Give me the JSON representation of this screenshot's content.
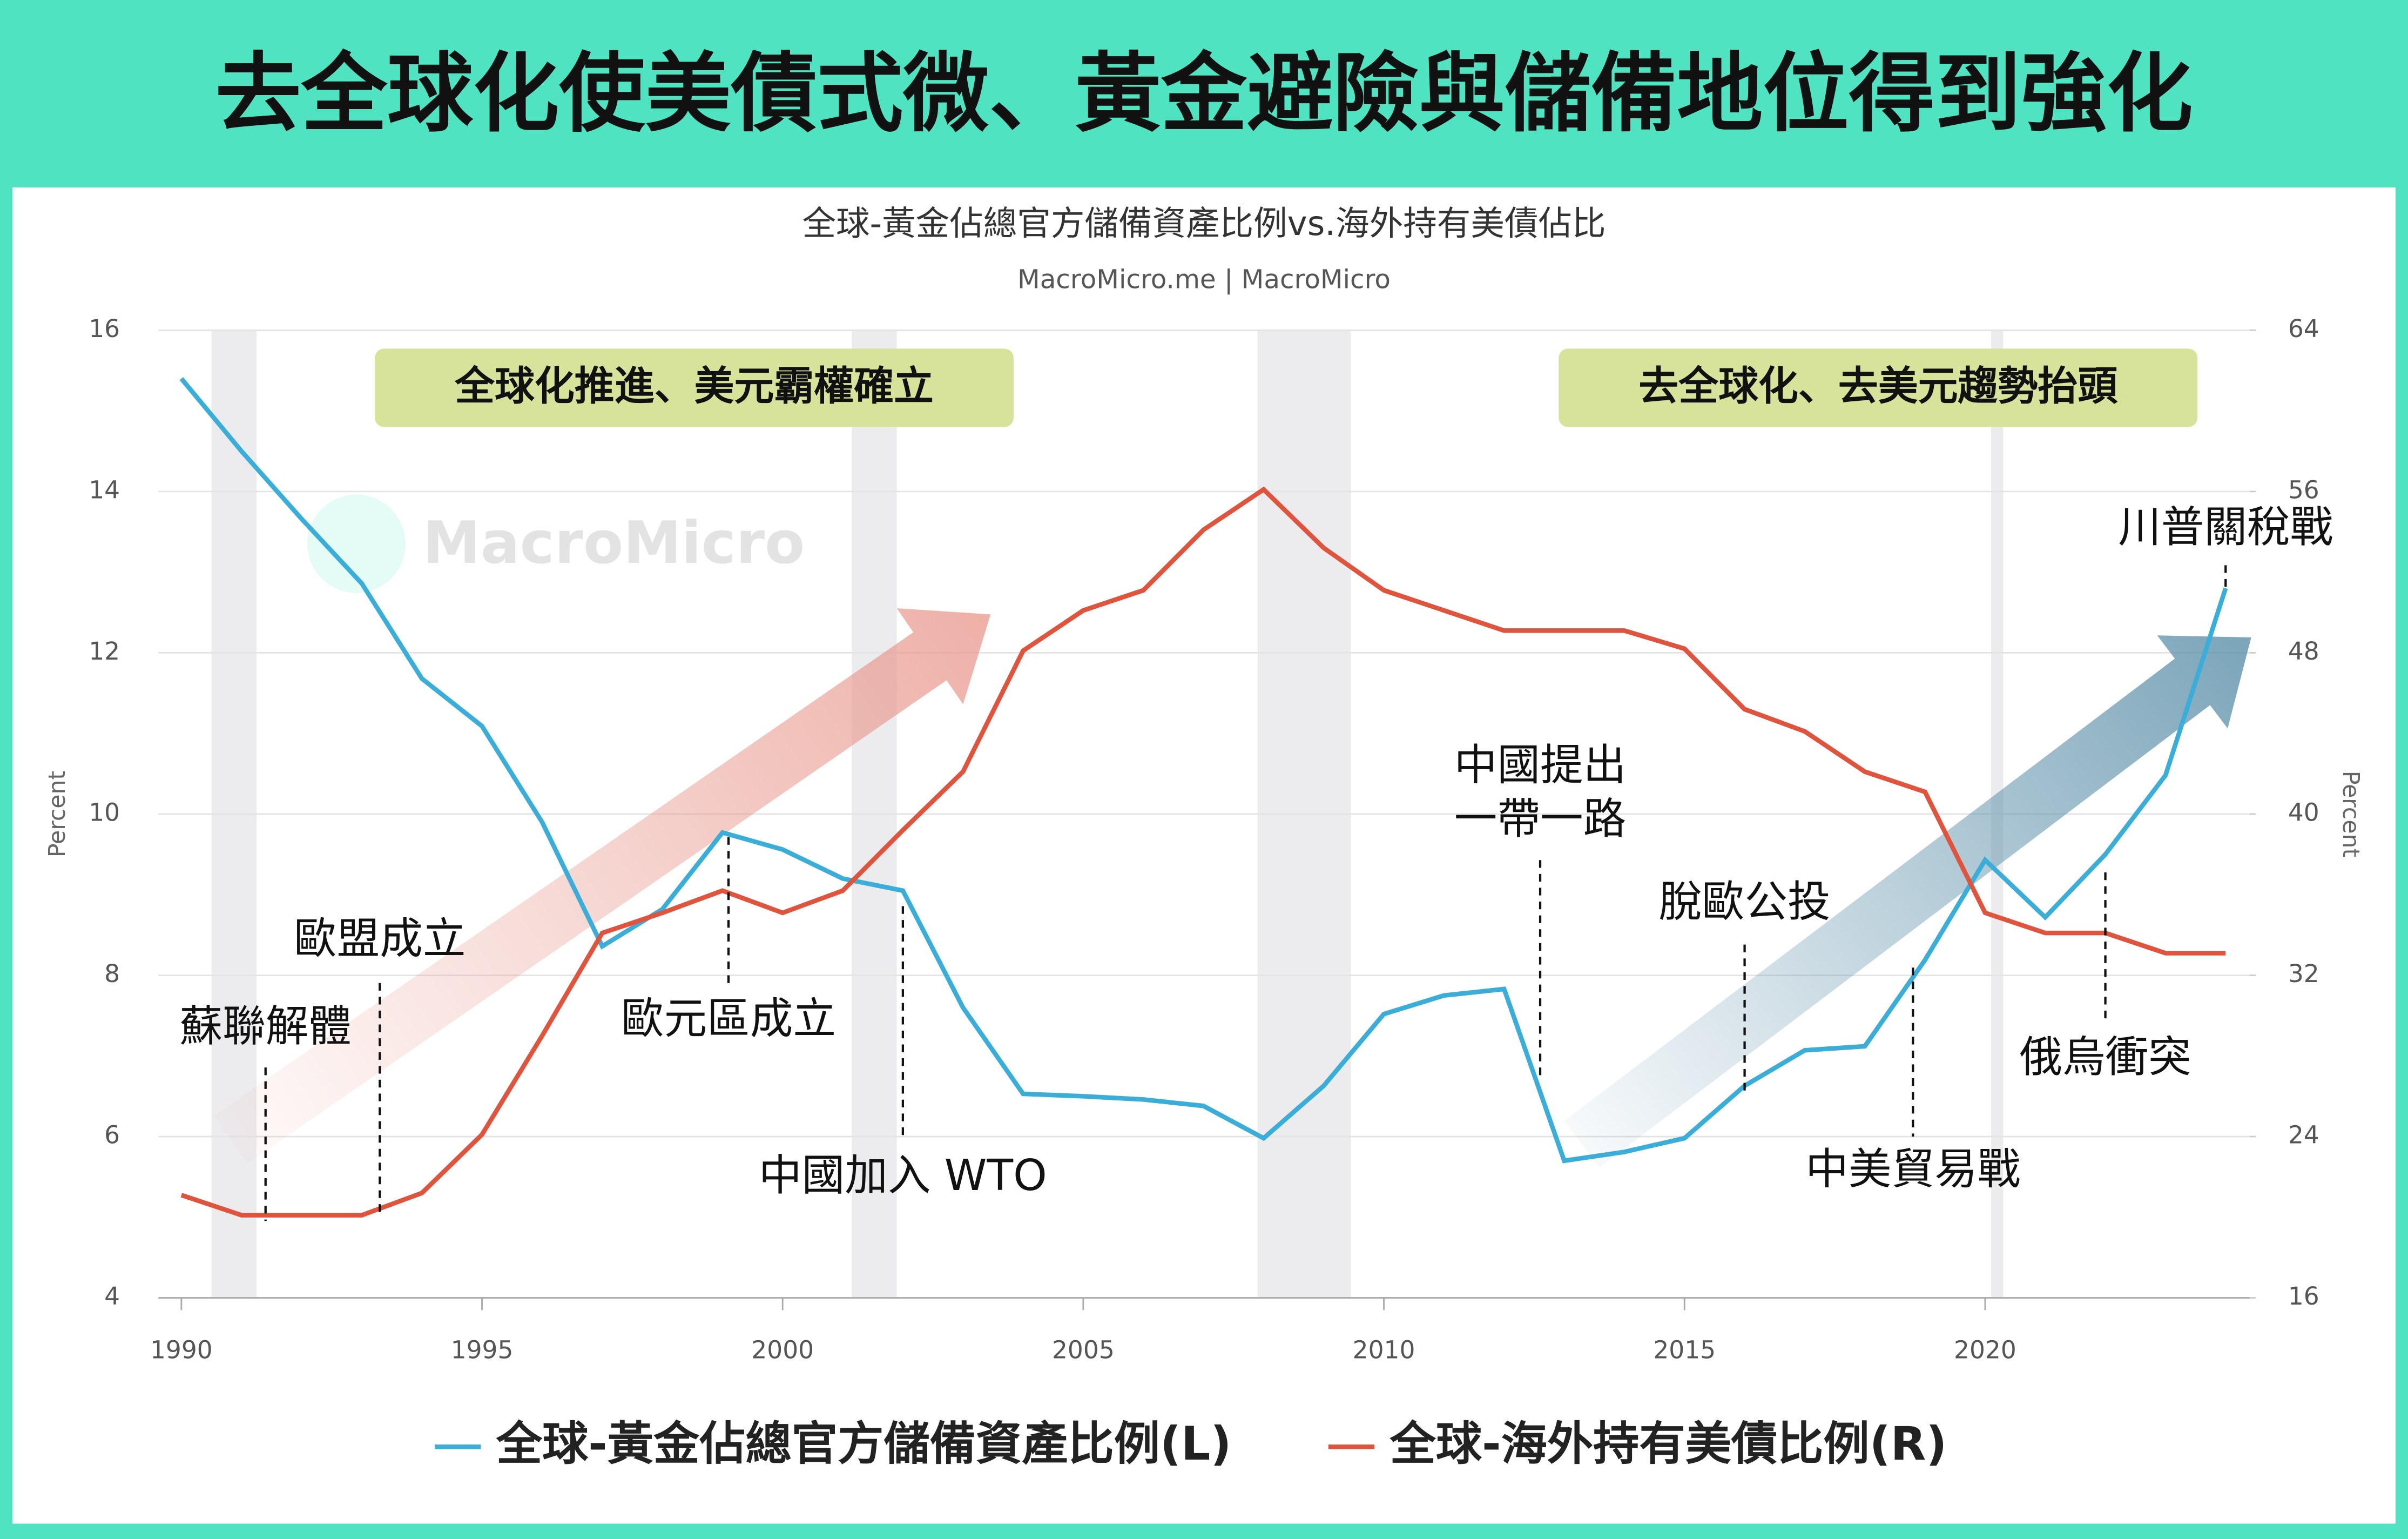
{
  "header": {
    "title": "去全球化使美債式微、黃金避險與儲備地位得到強化"
  },
  "chart_data": {
    "type": "line",
    "title": "全球-黃金佔總官方儲備資產比例vs.海外持有美債佔比",
    "subtitle": "MacroMicro.me | MacroMicro",
    "watermark": "MacroMicro",
    "y_label": "Percent",
    "y2_label": "Percent",
    "x": [
      1990,
      1991,
      1992,
      1993,
      1994,
      1995,
      1996,
      1997,
      1998,
      1999,
      2000,
      2001,
      2002,
      2003,
      2004,
      2005,
      2006,
      2007,
      2008,
      2009,
      2010,
      2011,
      2012,
      2013,
      2014,
      2015,
      2016,
      2017,
      2018,
      2019,
      2020,
      2021,
      2022,
      2023,
      2024
    ],
    "xlim": [
      1990,
      2024.4
    ],
    "xticks": [
      1990,
      1995,
      2000,
      2005,
      2010,
      2015,
      2020
    ],
    "ylim": [
      4,
      16
    ],
    "yticks": [
      4,
      6,
      8,
      10,
      12,
      14,
      16
    ],
    "y2lim": [
      16,
      64
    ],
    "y2ticks": [
      16,
      24,
      32,
      40,
      48,
      56,
      64
    ],
    "grid": true,
    "series": [
      {
        "name": "全球-黃金佔總官方儲備資產比例(L)",
        "color": "#3aaed8",
        "values": [
          15.4,
          14.5,
          13.66,
          12.86,
          11.68,
          11.09,
          9.9,
          8.36,
          8.82,
          9.77,
          9.56,
          9.2,
          9.05,
          7.6,
          6.53,
          6.5,
          6.46,
          6.38,
          5.98,
          6.63,
          7.52,
          7.75,
          7.83,
          5.7,
          5.81,
          5.98,
          6.63,
          7.07,
          7.12,
          8.19,
          9.43,
          8.72,
          9.5,
          10.48,
          12.8
        ]
      },
      {
        "name": "全球-海外持有美債比例(R)",
        "color": "#e0533d",
        "axis": "y2",
        "values": [
          21.1,
          20.1,
          20.1,
          20.1,
          21.2,
          24.1,
          29,
          34.1,
          35.1,
          36.2,
          35.1,
          36.2,
          39.2,
          42.1,
          48.1,
          50.1,
          51.1,
          54.1,
          56.1,
          53.2,
          51.1,
          50.1,
          49.1,
          49.1,
          49.1,
          48.2,
          45.2,
          44.1,
          42.1,
          41.1,
          35.1,
          34.1,
          34.1,
          33.1,
          33.1
        ]
      }
    ],
    "shaded_periods": [
      [
        1990.5,
        1991.25
      ],
      [
        2001.15,
        2001.9
      ],
      [
        2007.9,
        2009.45
      ],
      [
        2020.1,
        2020.3
      ]
    ],
    "boxes": [
      "全球化推進、美元霸權確立",
      "去全球化、去美元趨勢抬頭"
    ],
    "annotations": [
      {
        "text": "蘇聯解體",
        "x": 1991.4
      },
      {
        "text": "歐盟成立",
        "x": 1993.3
      },
      {
        "text": "歐元區成立",
        "x": 1999.1
      },
      {
        "text": "中國加入 WTO",
        "x": 2002
      },
      {
        "lines": [
          "中國提出",
          "一帶一路"
        ],
        "x": 2012.6
      },
      {
        "text": "脫歐公投",
        "x": 2016
      },
      {
        "text": "中美貿易戰",
        "x": 2018.8
      },
      {
        "text": "俄烏衝突",
        "x": 2022
      },
      {
        "text": "川普關稅戰",
        "x": 2024
      }
    ]
  }
}
